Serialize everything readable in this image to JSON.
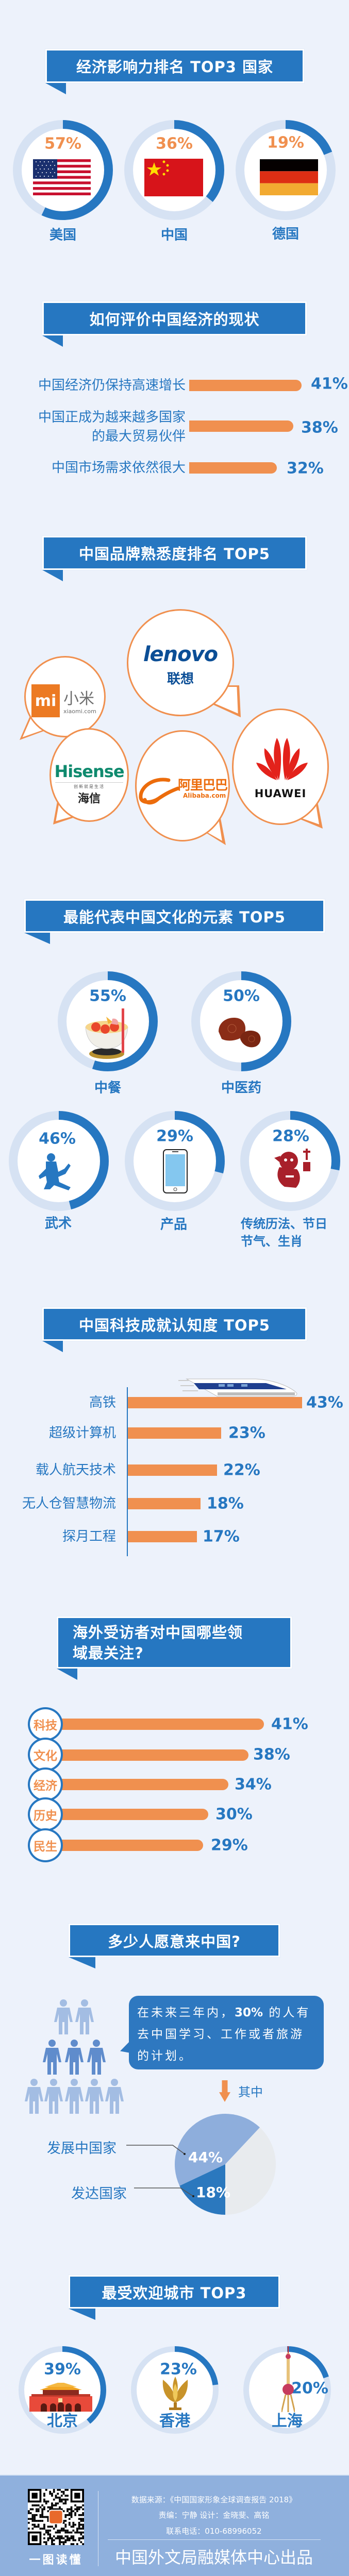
{
  "colors": {
    "background": "#edf2fb",
    "primary_blue": "#2677c1",
    "orange": "#f0904f",
    "ring_track": "#d6e2f3",
    "footer": "#8fb0dd"
  },
  "economy": {
    "title": "经济影响力排名 TOP3 国家",
    "countries": [
      {
        "name": "美国",
        "pct": "57%",
        "icon": "us-flag-icon"
      },
      {
        "name": "中国",
        "pct": "36%",
        "icon": "china-flag-icon"
      },
      {
        "name": "德国",
        "pct": "19%",
        "icon": "germany-flag-icon"
      }
    ]
  },
  "status": {
    "title": "如何评价中国经济的现状",
    "items": [
      {
        "lines": [
          "中国经济仍保持高速增长"
        ],
        "pct": "41%"
      },
      {
        "lines": [
          "中国正成为越来越多国家",
          "的最大贸易伙伴"
        ],
        "pct": "38%"
      },
      {
        "lines": [
          "中国市场需求依然很大"
        ],
        "pct": "32%"
      }
    ]
  },
  "brands": {
    "title": "中国品牌熟悉度排名 TOP5",
    "lenovo": {
      "en": "lenovo",
      "cn": "联想"
    },
    "xiaomi": {
      "mark": "mi",
      "cn": "小米",
      "site": "xiaomi.com"
    },
    "hisense": {
      "en": "Hisense",
      "slogan": "创新就是生活",
      "cn": "海信"
    },
    "alibaba": {
      "cn": "阿里巴巴",
      "site": "Alibaba.com"
    },
    "huawei": {
      "en": "HUAWEI"
    }
  },
  "culture": {
    "title": "最能代表中国文化的元素 TOP5",
    "items": [
      {
        "name": "中餐",
        "pct": "55%",
        "icon": "food-bowl-icon"
      },
      {
        "name": "中医药",
        "pct": "50%",
        "icon": "lingzhi-mushroom-icon"
      },
      {
        "name": "武术",
        "pct": "46%",
        "icon": "kungfu-icon"
      },
      {
        "name": "产品",
        "pct": "29%",
        "icon": "smartphone-icon"
      },
      {
        "name_lines": [
          "传统历法、节日",
          "节气、生肖"
        ],
        "pct": "28%",
        "icon": "zodiac-papercut-icon"
      }
    ]
  },
  "tech": {
    "title": "中国科技成就认知度 TOP5",
    "items": [
      {
        "label": "高铁",
        "pct": "43%"
      },
      {
        "label": "超级计算机",
        "pct": "23%"
      },
      {
        "label": "载人航天技术",
        "pct": "22%"
      },
      {
        "label": "无人仓智慧物流",
        "pct": "18%"
      },
      {
        "label": "探月工程",
        "pct": "17%"
      }
    ]
  },
  "focus": {
    "title_lines": [
      "海外受访者对中国哪些领",
      "域最关注?"
    ],
    "items": [
      {
        "label": "科技",
        "pct": "41%"
      },
      {
        "label": "文化",
        "pct": "38%"
      },
      {
        "label": "经济",
        "pct": "34%"
      },
      {
        "label": "历史",
        "pct": "30%"
      },
      {
        "label": "民生",
        "pct": "29%"
      }
    ]
  },
  "willing": {
    "title": "多少人愿意来中国?",
    "text_before": "在未来三年内，",
    "text_highlight": "30%",
    "text_after": " 的人有去中国学习、工作或者旅游的计划。",
    "among": "其中",
    "chart_data": {
      "type": "pie",
      "slices": [
        {
          "name": "发达国家",
          "value": 18,
          "label": "18%",
          "color": "#2b78be"
        },
        {
          "name": "发展中国家",
          "value": 44,
          "label": "44%",
          "color": "#8eaedc"
        },
        {
          "name": "",
          "value": 38,
          "label": "",
          "color": "#e8ebee"
        }
      ]
    }
  },
  "cities": {
    "title": "最受欢迎城市 TOP3",
    "items": [
      {
        "name": "北京",
        "pct": "39%",
        "icon": "tiananmen-icon"
      },
      {
        "name": "香港",
        "pct": "23%",
        "icon": "golden-bauhinia-icon"
      },
      {
        "name": "上海",
        "pct": "20%",
        "icon": "oriental-pearl-tower-icon"
      }
    ]
  },
  "footer": {
    "qr_caption": "一图读懂",
    "source": "数据来源：《中国国家形象全球调查报告 2018》",
    "credits": "责编：宁静   设计：金晓斐、高铭",
    "phone": "联系电话：010-68996052",
    "producer": "中国外文局融媒体中心出品"
  }
}
